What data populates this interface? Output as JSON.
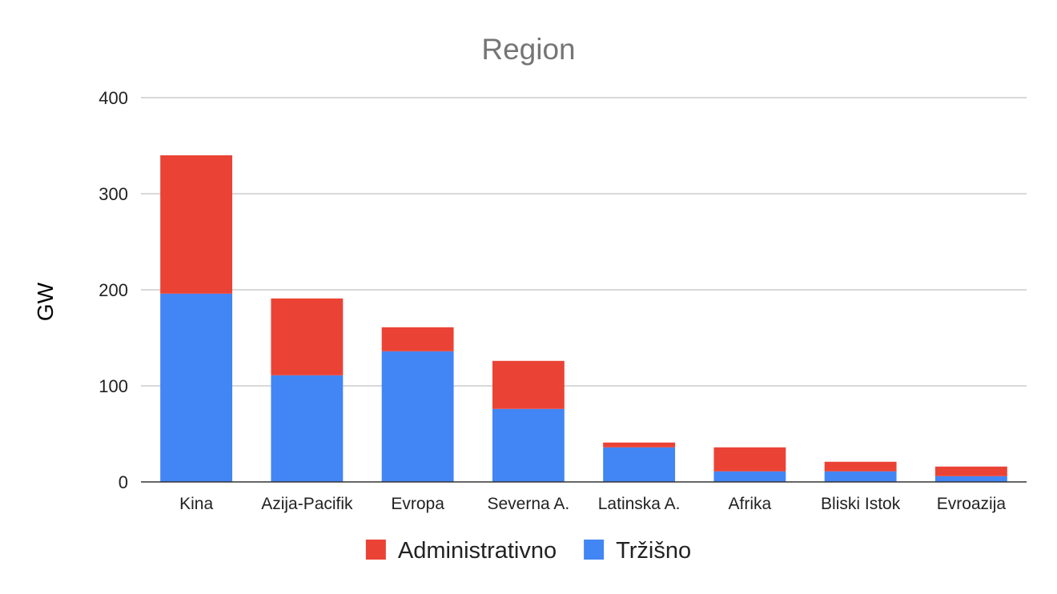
{
  "chart_data": {
    "type": "bar",
    "stacked": true,
    "title": "Region",
    "xlabel": "",
    "ylabel": "GW",
    "ylim": [
      0,
      400
    ],
    "yticks": [
      "0",
      "100",
      "200",
      "300",
      "400"
    ],
    "grid": true,
    "legend_position": "bottom",
    "categories": [
      "Kina",
      "Azija-Pacifik",
      "Evropa",
      "Severna A.",
      "Latinska A.",
      "Afrika",
      "Bliski Istok",
      "Evroazija"
    ],
    "series": [
      {
        "name": "Tržišno",
        "color": "#4285f4",
        "values": [
          196,
          111,
          136,
          76,
          36,
          11,
          11,
          6
        ]
      },
      {
        "name": "Administrativno",
        "color": "#ea4335",
        "values": [
          144,
          80,
          25,
          50,
          5,
          25,
          10,
          10
        ]
      }
    ],
    "legend_order": [
      "Administrativno",
      "Tržišno"
    ]
  }
}
